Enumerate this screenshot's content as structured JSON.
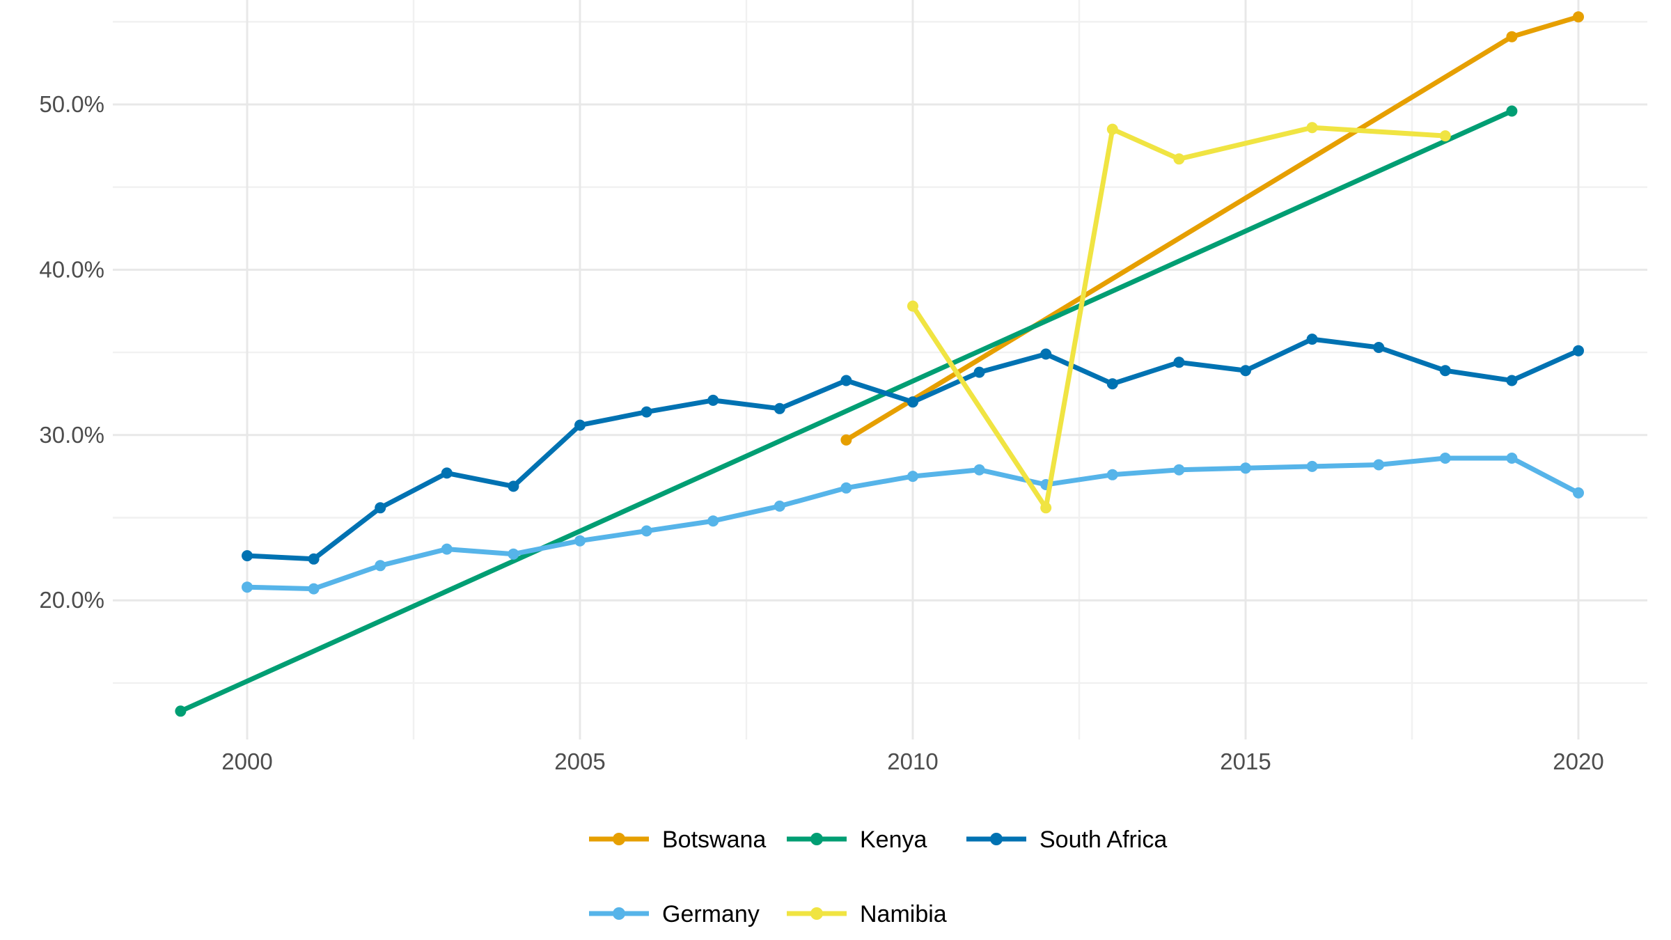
{
  "chart_data": {
    "type": "line",
    "title": "",
    "xlabel": "",
    "ylabel": "",
    "grid": true,
    "legend_position": "bottom",
    "xlim": [
      1998,
      2021.1
    ],
    "ylim": [
      11.5,
      56.3
    ],
    "x_ticks": [
      2000,
      2005,
      2010,
      2015,
      2020
    ],
    "x_tick_labels": [
      "2000",
      "2005",
      "2010",
      "2015",
      "2020"
    ],
    "x_minor_ticks": [
      2002.5,
      2007.5,
      2012.5,
      2017.5
    ],
    "y_ticks": [
      50,
      40,
      30,
      20
    ],
    "y_tick_labels": [
      "50.0%",
      "40.0%",
      "30.0%",
      "20.0%"
    ],
    "y_minor_ticks": [
      55,
      45,
      35,
      25,
      15
    ],
    "series": [
      {
        "name": "Botswana",
        "color": "#E69F00",
        "points": [
          [
            2009,
            29.7
          ],
          [
            2019,
            54.1
          ],
          [
            2020,
            55.3
          ]
        ]
      },
      {
        "name": "Kenya",
        "color": "#009E73",
        "points": [
          [
            1999,
            13.3
          ],
          [
            2019,
            49.6
          ]
        ]
      },
      {
        "name": "South Africa",
        "color": "#0072B2",
        "points": [
          [
            2000,
            22.7
          ],
          [
            2001,
            22.5
          ],
          [
            2002,
            25.6
          ],
          [
            2003,
            27.7
          ],
          [
            2004,
            26.9
          ],
          [
            2005,
            30.6
          ],
          [
            2006,
            31.4
          ],
          [
            2007,
            32.1
          ],
          [
            2008,
            31.6
          ],
          [
            2009,
            33.3
          ],
          [
            2010,
            32.0
          ],
          [
            2011,
            33.8
          ],
          [
            2012,
            34.9
          ],
          [
            2013,
            33.1
          ],
          [
            2014,
            34.4
          ],
          [
            2015,
            33.9
          ],
          [
            2016,
            35.8
          ],
          [
            2017,
            35.3
          ],
          [
            2018,
            33.9
          ],
          [
            2019,
            33.3
          ],
          [
            2020,
            35.1
          ]
        ]
      },
      {
        "name": "Germany",
        "color": "#56B4E9",
        "points": [
          [
            2000,
            20.8
          ],
          [
            2001,
            20.7
          ],
          [
            2002,
            22.1
          ],
          [
            2003,
            23.1
          ],
          [
            2004,
            22.8
          ],
          [
            2005,
            23.6
          ],
          [
            2006,
            24.2
          ],
          [
            2007,
            24.8
          ],
          [
            2008,
            25.7
          ],
          [
            2009,
            26.8
          ],
          [
            2010,
            27.5
          ],
          [
            2011,
            27.9
          ],
          [
            2012,
            27.0
          ],
          [
            2013,
            27.6
          ],
          [
            2014,
            27.9
          ],
          [
            2015,
            28.0
          ],
          [
            2016,
            28.1
          ],
          [
            2017,
            28.2
          ],
          [
            2018,
            28.6
          ],
          [
            2019,
            28.6
          ],
          [
            2020,
            26.5
          ]
        ]
      },
      {
        "name": "Namibia",
        "color": "#F0E442",
        "points": [
          [
            2010,
            37.8
          ],
          [
            2012,
            25.6
          ],
          [
            2013,
            48.5
          ],
          [
            2014,
            46.7
          ],
          [
            2016,
            48.6
          ],
          [
            2018,
            48.1
          ]
        ]
      }
    ],
    "legend_rows": [
      [
        "Botswana",
        "Kenya",
        "South Africa"
      ],
      [
        "Germany",
        "Namibia"
      ]
    ]
  },
  "styles": {
    "background_color": "#FFFFFF",
    "axis_text_color": "#4D4D4D",
    "legend_text_color": "#000000",
    "grid_major_color": "#E8E8E8",
    "grid_minor_color": "#F1F1F1"
  }
}
